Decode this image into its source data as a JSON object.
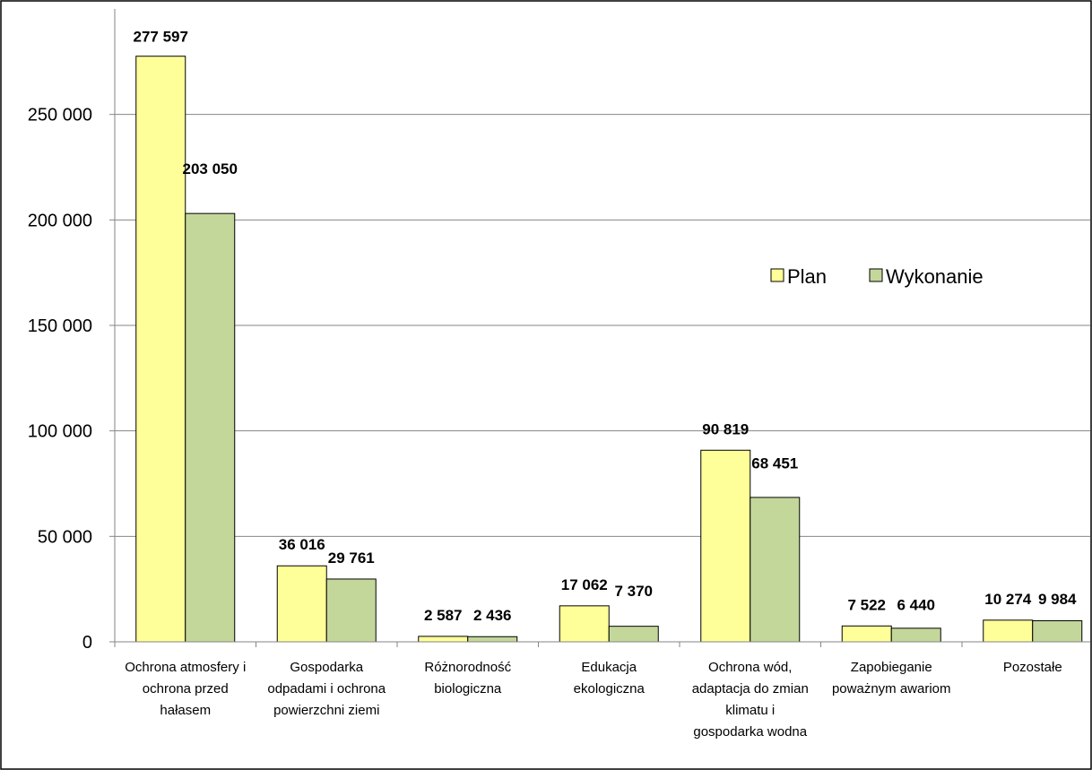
{
  "chart_data": {
    "type": "bar",
    "categories": [
      [
        "Ochrona atmosfery i",
        "ochrona przed",
        "hałasem"
      ],
      [
        "Gospodarka",
        "odpadami i ochrona",
        "powierzchni ziemi"
      ],
      [
        "Różnorodność",
        "biologiczna"
      ],
      [
        "Edukacja",
        "ekologiczna"
      ],
      [
        "Ochrona wód,",
        "adaptacja do zmian",
        "klimatu i",
        "gospodarka wodna"
      ],
      [
        "Zapobieganie",
        "poważnym awariom"
      ],
      [
        "Pozostałe"
      ]
    ],
    "series": [
      {
        "name": "Plan",
        "color": "#ffff99",
        "values": [
          277597,
          36016,
          2587,
          17062,
          90819,
          7522,
          10274
        ],
        "labels": [
          "277 597",
          "36 016",
          "2 587",
          "17 062",
          "90 819",
          "7 522",
          "10 274"
        ]
      },
      {
        "name": "Wykonanie",
        "color": "#c4d79b",
        "values": [
          203050,
          29761,
          2436,
          7370,
          68451,
          6440,
          9984
        ],
        "labels": [
          "203 050",
          "29 761",
          "2 436",
          "7 370",
          "68 451",
          "6 440",
          "9 984"
        ]
      }
    ],
    "y_ticks": [
      {
        "value": 0,
        "label": "0"
      },
      {
        "value": 50000,
        "label": "50 000"
      },
      {
        "value": 100000,
        "label": "100 000"
      },
      {
        "value": 150000,
        "label": "150 000"
      },
      {
        "value": 200000,
        "label": "200 000"
      },
      {
        "value": 250000,
        "label": "250 000"
      }
    ],
    "ylim": [
      0,
      300000
    ],
    "grid": true,
    "legend_position": "top-right"
  }
}
